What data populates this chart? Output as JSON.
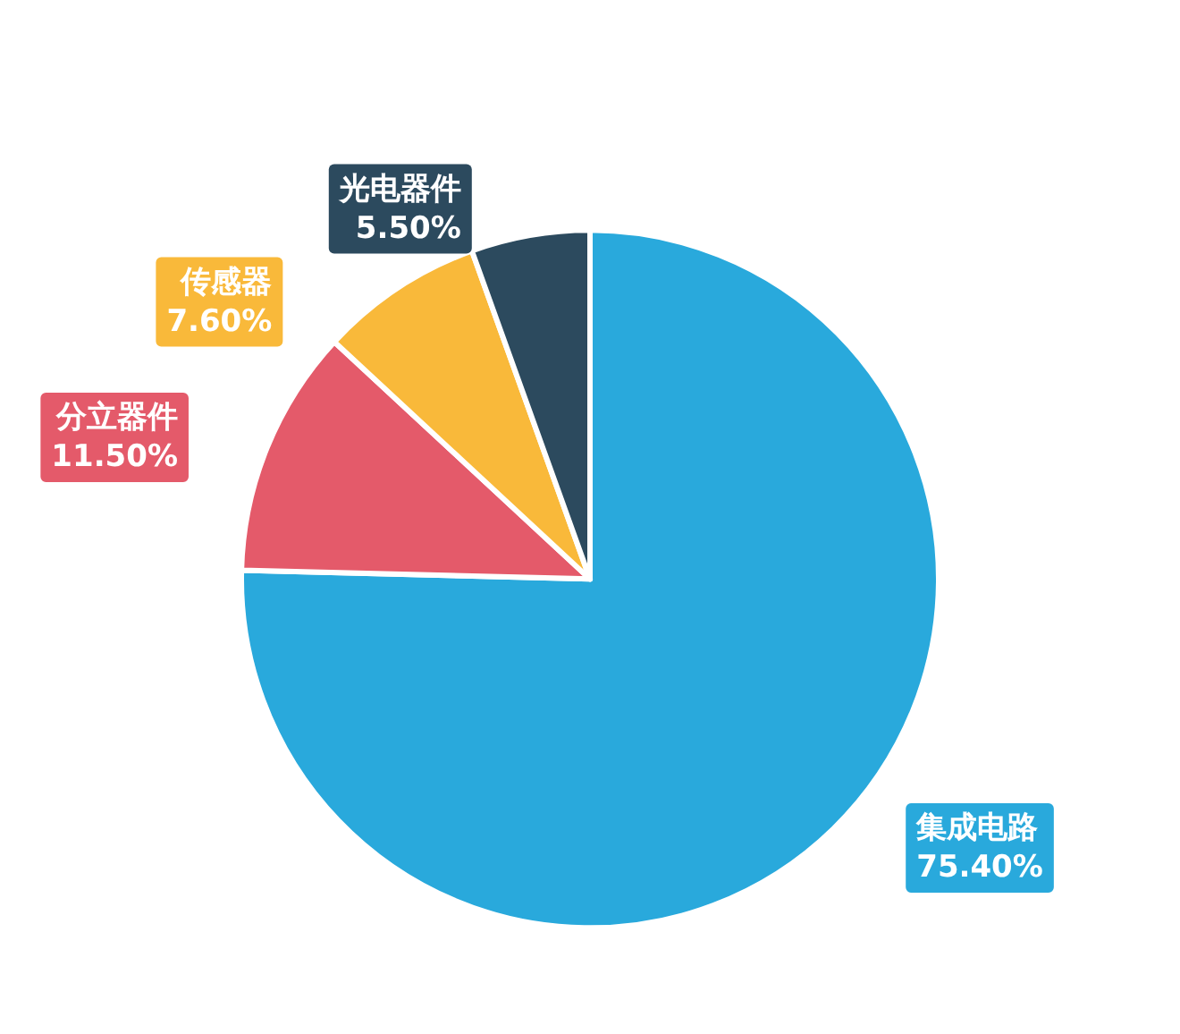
{
  "chart_data": {
    "type": "pie",
    "categories": [
      "集成电路",
      "分立器件",
      "传感器",
      "光电器件"
    ],
    "values": [
      75.4,
      11.5,
      7.6,
      5.5
    ],
    "colors": [
      "#29a9dc",
      "#e45a6a",
      "#f9b93a",
      "#2c4a5e"
    ],
    "value_labels": [
      "75.40%",
      "11.50%",
      "7.60%",
      "5.50%"
    ],
    "legend": false
  }
}
